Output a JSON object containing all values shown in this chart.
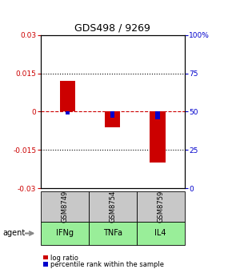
{
  "title": "GDS498 / 9269",
  "samples": [
    "GSM8749",
    "GSM8754",
    "GSM8759"
  ],
  "agents": [
    "IFNg",
    "TNFa",
    "IL4"
  ],
  "log_ratios": [
    0.012,
    -0.006,
    -0.02
  ],
  "percentile_ranks": [
    48,
    46,
    45
  ],
  "ylim_left": [
    -0.03,
    0.03
  ],
  "ylim_right": [
    0,
    100
  ],
  "yticks_left": [
    -0.03,
    -0.015,
    0,
    0.015,
    0.03
  ],
  "yticks_right": [
    0,
    25,
    50,
    75,
    100
  ],
  "ytick_labels_left": [
    "-0.03",
    "-0.015",
    "0",
    "0.015",
    "0.03"
  ],
  "ytick_labels_right": [
    "0",
    "25",
    "50",
    "75",
    "100%"
  ],
  "hlines_dotted": [
    -0.015,
    0.015
  ],
  "hline_dashed_red": 0.0,
  "bar_width": 0.35,
  "blue_bar_width": 0.1,
  "red_color": "#cc0000",
  "blue_color": "#0000cc",
  "sample_bg_color": "#c8c8c8",
  "agent_bg_color": "#99ee99",
  "legend_red_label": "log ratio",
  "legend_blue_label": "percentile rank within the sample",
  "agent_label": "agent"
}
